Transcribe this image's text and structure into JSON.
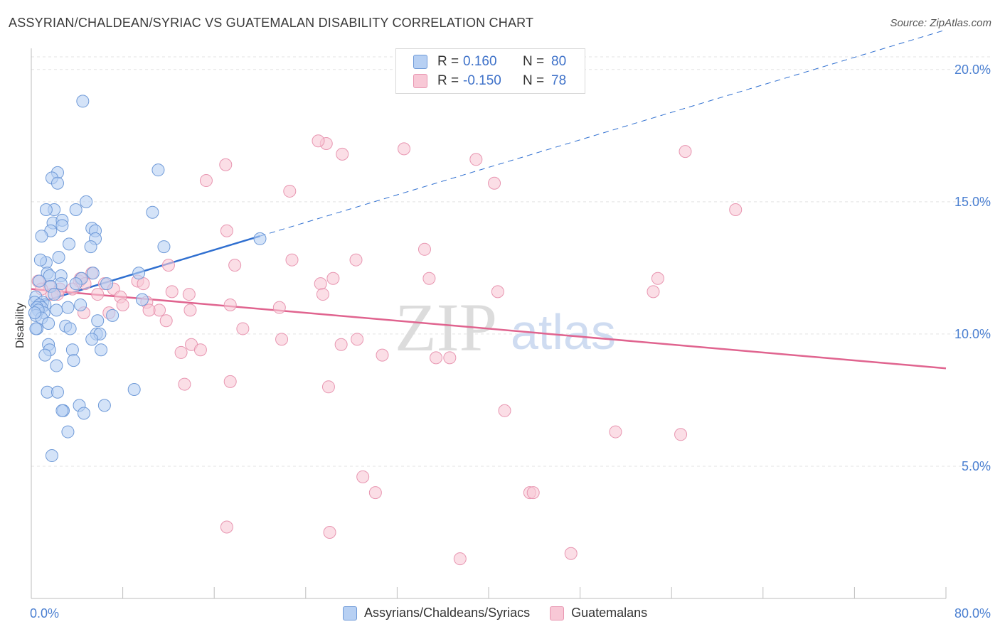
{
  "title": "ASSYRIAN/CHALDEAN/SYRIAC VS GUATEMALAN DISABILITY CORRELATION CHART",
  "source": "Source: ZipAtlas.com",
  "watermark": {
    "zip": "ZIP",
    "atlas": "atlas"
  },
  "legend": {
    "r_label": "R =",
    "n_label": "N =",
    "series1": {
      "r": "0.160",
      "n": "80"
    },
    "series2": {
      "r": "-0.150",
      "n": "78"
    }
  },
  "bottom_legend": {
    "series1": "Assyrians/Chaldeans/Syriacs",
    "series2": "Guatemalans"
  },
  "colors": {
    "blue_fill": "#b7d0f3",
    "blue_stroke": "#6f9ad8",
    "blue_line": "#2f6fd0",
    "pink_fill": "#f8c8d6",
    "pink_stroke": "#e896b1",
    "pink_line": "#e0648f",
    "tick_label": "#4a7fd1",
    "grid": "#e3e3e3"
  },
  "chart_data": {
    "type": "scatter",
    "title": "ASSYRIAN/CHALDEAN/SYRIAC VS GUATEMALAN DISABILITY CORRELATION CHART",
    "xlabel": "",
    "ylabel": "Disability",
    "xlim": [
      0,
      80
    ],
    "ylim": [
      0,
      20.8
    ],
    "x_tick_labels": [
      "0.0%",
      "80.0%"
    ],
    "y_ticks": [
      5,
      10,
      15,
      20
    ],
    "y_tick_labels": [
      "5.0%",
      "10.0%",
      "15.0%",
      "20.0%"
    ],
    "series": [
      {
        "name": "Assyrians/Chaldeans/Syriacs",
        "r": 0.16,
        "n": 80,
        "trend": {
          "x0": 0,
          "y0": 11.1,
          "x1": 20,
          "y1": 13.7,
          "dash_to_x": 80
        },
        "points": [
          [
            4.5,
            18.8
          ],
          [
            11.1,
            16.2
          ],
          [
            2.3,
            16.1
          ],
          [
            1.8,
            15.9
          ],
          [
            2.3,
            15.7
          ],
          [
            4.8,
            15.0
          ],
          [
            2.0,
            14.7
          ],
          [
            3.9,
            14.7
          ],
          [
            1.3,
            14.7
          ],
          [
            10.6,
            14.6
          ],
          [
            1.9,
            14.2
          ],
          [
            2.7,
            14.3
          ],
          [
            2.7,
            14.1
          ],
          [
            5.3,
            14.0
          ],
          [
            5.6,
            13.9
          ],
          [
            1.7,
            13.9
          ],
          [
            0.9,
            13.7
          ],
          [
            5.6,
            13.6
          ],
          [
            11.6,
            13.3
          ],
          [
            3.3,
            13.4
          ],
          [
            5.2,
            13.3
          ],
          [
            2.4,
            12.9
          ],
          [
            1.3,
            12.7
          ],
          [
            0.8,
            12.8
          ],
          [
            1.4,
            12.3
          ],
          [
            2.6,
            12.2
          ],
          [
            5.4,
            12.3
          ],
          [
            9.4,
            12.3
          ],
          [
            1.6,
            12.2
          ],
          [
            0.7,
            12.0
          ],
          [
            4.4,
            12.1
          ],
          [
            2.6,
            11.9
          ],
          [
            6.6,
            11.9
          ],
          [
            1.7,
            11.8
          ],
          [
            3.9,
            11.9
          ],
          [
            0.4,
            11.4
          ],
          [
            2.0,
            11.5
          ],
          [
            9.7,
            11.3
          ],
          [
            1.0,
            11.2
          ],
          [
            0.3,
            11.2
          ],
          [
            1.2,
            11.1
          ],
          [
            0.7,
            11.1
          ],
          [
            0.9,
            11.0
          ],
          [
            0.5,
            11.0
          ],
          [
            3.2,
            11.0
          ],
          [
            2.2,
            10.9
          ],
          [
            1.1,
            10.8
          ],
          [
            0.6,
            10.9
          ],
          [
            0.4,
            10.7
          ],
          [
            0.9,
            10.6
          ],
          [
            0.3,
            10.8
          ],
          [
            7.1,
            10.7
          ],
          [
            5.8,
            10.5
          ],
          [
            1.5,
            10.4
          ],
          [
            0.5,
            10.2
          ],
          [
            3.0,
            10.3
          ],
          [
            0.4,
            10.2
          ],
          [
            3.4,
            10.2
          ],
          [
            5.7,
            10.0
          ],
          [
            6.0,
            10.0
          ],
          [
            5.3,
            9.8
          ],
          [
            1.5,
            9.6
          ],
          [
            1.6,
            9.4
          ],
          [
            3.6,
            9.4
          ],
          [
            6.1,
            9.4
          ],
          [
            1.2,
            9.2
          ],
          [
            3.7,
            9.0
          ],
          [
            2.2,
            8.8
          ],
          [
            9.0,
            7.9
          ],
          [
            1.4,
            7.8
          ],
          [
            2.3,
            7.8
          ],
          [
            4.2,
            7.3
          ],
          [
            6.4,
            7.3
          ],
          [
            2.8,
            7.1
          ],
          [
            4.6,
            7.0
          ],
          [
            2.7,
            7.1
          ],
          [
            3.2,
            6.3
          ],
          [
            1.8,
            5.4
          ],
          [
            20.0,
            13.6
          ],
          [
            4.3,
            11.1
          ]
        ]
      },
      {
        "name": "Guatemalans",
        "r": -0.15,
        "n": 78,
        "trend": {
          "x0": 0,
          "y0": 11.7,
          "x1": 80,
          "y1": 8.7
        },
        "points": [
          [
            38.3,
            20.0
          ],
          [
            25.8,
            17.2
          ],
          [
            25.1,
            17.3
          ],
          [
            32.6,
            17.0
          ],
          [
            27.2,
            16.8
          ],
          [
            57.2,
            16.9
          ],
          [
            38.9,
            16.6
          ],
          [
            17.0,
            16.4
          ],
          [
            40.5,
            15.7
          ],
          [
            15.3,
            15.8
          ],
          [
            22.6,
            15.4
          ],
          [
            61.6,
            14.7
          ],
          [
            17.1,
            13.9
          ],
          [
            34.4,
            13.2
          ],
          [
            22.8,
            12.8
          ],
          [
            28.4,
            12.8
          ],
          [
            17.8,
            12.6
          ],
          [
            12.0,
            12.6
          ],
          [
            34.8,
            12.1
          ],
          [
            5.3,
            12.3
          ],
          [
            26.4,
            12.1
          ],
          [
            9.3,
            12.0
          ],
          [
            9.8,
            11.9
          ],
          [
            25.3,
            11.9
          ],
          [
            4.2,
            12.0
          ],
          [
            4.3,
            12.1
          ],
          [
            6.4,
            11.9
          ],
          [
            54.8,
            12.1
          ],
          [
            0.6,
            12.0
          ],
          [
            1.6,
            11.8
          ],
          [
            0.9,
            11.7
          ],
          [
            2.5,
            11.7
          ],
          [
            3.6,
            11.7
          ],
          [
            7.2,
            11.7
          ],
          [
            12.3,
            11.6
          ],
          [
            13.8,
            11.5
          ],
          [
            1.8,
            11.5
          ],
          [
            2.3,
            11.5
          ],
          [
            25.5,
            11.5
          ],
          [
            5.8,
            11.5
          ],
          [
            7.8,
            11.4
          ],
          [
            10.1,
            11.2
          ],
          [
            17.4,
            11.1
          ],
          [
            21.7,
            11.0
          ],
          [
            13.9,
            10.9
          ],
          [
            11.2,
            10.9
          ],
          [
            10.3,
            10.9
          ],
          [
            6.8,
            10.8
          ],
          [
            4.6,
            10.8
          ],
          [
            11.8,
            10.5
          ],
          [
            18.5,
            10.2
          ],
          [
            28.5,
            9.8
          ],
          [
            21.9,
            9.8
          ],
          [
            27.1,
            9.6
          ],
          [
            14.0,
            9.6
          ],
          [
            14.8,
            9.4
          ],
          [
            13.1,
            9.3
          ],
          [
            30.7,
            9.2
          ],
          [
            35.4,
            9.1
          ],
          [
            36.6,
            9.1
          ],
          [
            17.4,
            8.2
          ],
          [
            13.4,
            8.1
          ],
          [
            26.0,
            8.0
          ],
          [
            41.4,
            7.1
          ],
          [
            51.1,
            6.3
          ],
          [
            56.8,
            6.2
          ],
          [
            29.0,
            4.6
          ],
          [
            30.1,
            4.0
          ],
          [
            43.6,
            4.0
          ],
          [
            43.9,
            4.0
          ],
          [
            17.1,
            2.7
          ],
          [
            26.1,
            2.5
          ],
          [
            37.5,
            1.5
          ],
          [
            47.2,
            1.7
          ],
          [
            40.8,
            11.6
          ],
          [
            54.4,
            11.6
          ],
          [
            8.0,
            11.1
          ],
          [
            4.7,
            11.9
          ]
        ]
      }
    ]
  }
}
